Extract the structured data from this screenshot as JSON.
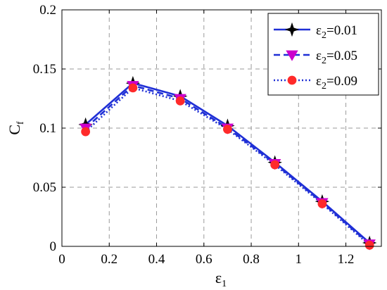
{
  "chart_data": {
    "type": "line",
    "title": "",
    "xlabel": {
      "base": "ε",
      "sub": "1"
    },
    "ylabel": {
      "base": "C",
      "sub": "f"
    },
    "xlim": [
      0,
      1.35
    ],
    "ylim": [
      0,
      0.2
    ],
    "xticks": [
      0,
      0.2,
      0.4,
      0.6,
      0.8,
      1,
      1.2
    ],
    "xtick_labels": [
      "0",
      "0.2",
      "0.4",
      "0.6",
      "0.8",
      "1",
      "1.2"
    ],
    "yticks": [
      0,
      0.05,
      0.1,
      0.15,
      0.2
    ],
    "ytick_labels": [
      "0",
      "0.05",
      "0.1",
      "0.15",
      "0.2"
    ],
    "grid": true,
    "legend_position": "top-right",
    "x": [
      0.1,
      0.3,
      0.5,
      0.7,
      0.9,
      1.1,
      1.3
    ],
    "series": [
      {
        "name": "ε2=0.01",
        "label_base": "ε",
        "label_sub": "2",
        "label_rest": "=0.01",
        "values": [
          0.103,
          0.138,
          0.127,
          0.102,
          0.071,
          0.038,
          0.003
        ],
        "color": "#1f2fd6",
        "line_style": "solid",
        "marker": "star",
        "marker_color": "#000000"
      },
      {
        "name": "ε2=0.05",
        "label_base": "ε",
        "label_sub": "2",
        "label_rest": "=0.05",
        "values": [
          0.1,
          0.136,
          0.125,
          0.1,
          0.07,
          0.037,
          0.002
        ],
        "color": "#1f2fd6",
        "line_style": "dashed",
        "marker": "triangle-down",
        "marker_color": "#cc00cc"
      },
      {
        "name": "ε2=0.09",
        "label_base": "ε",
        "label_sub": "2",
        "label_rest": "=0.09",
        "values": [
          0.097,
          0.134,
          0.123,
          0.099,
          0.069,
          0.036,
          0.001
        ],
        "color": "#1f2fd6",
        "line_style": "dotted",
        "marker": "circle",
        "marker_color": "#ff2a2a"
      }
    ]
  }
}
